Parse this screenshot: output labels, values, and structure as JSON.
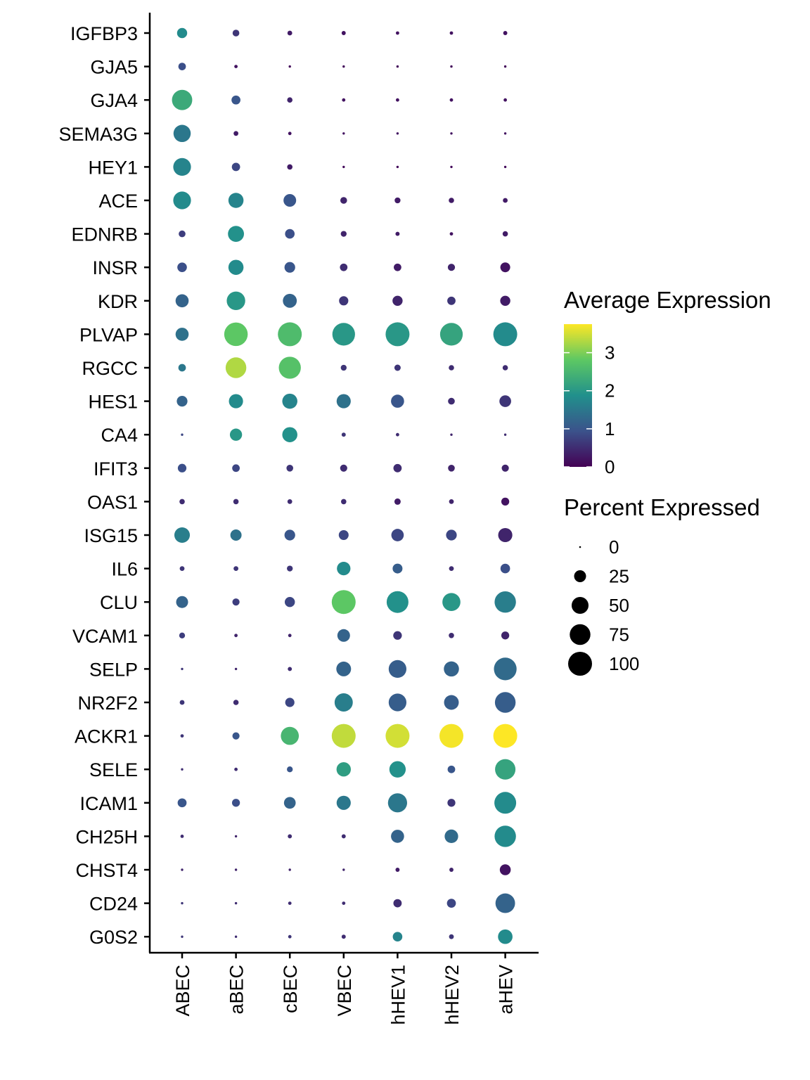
{
  "chart_data": {
    "type": "dotplot",
    "cell_types": [
      "ABEC",
      "aBEC",
      "cBEC",
      "VBEC",
      "hHEV1",
      "hHEV2",
      "aHEV"
    ],
    "genes": [
      "IGFBP3",
      "GJA5",
      "GJA4",
      "SEMA3G",
      "HEY1",
      "ACE",
      "EDNRB",
      "INSR",
      "KDR",
      "PLVAP",
      "RGCC",
      "HES1",
      "CA4",
      "IFIT3",
      "OAS1",
      "ISG15",
      "IL6",
      "CLU",
      "VCAM1",
      "SELP",
      "NR2F2",
      "ACKR1",
      "SELE",
      "ICAM1",
      "CH25H",
      "CHST4",
      "CD24",
      "G0S2"
    ],
    "avg_expression": [
      [
        1.8,
        0.6,
        0.3,
        0.2,
        0.2,
        0.2,
        0.2
      ],
      [
        0.9,
        0.2,
        0.1,
        0.1,
        0.1,
        0.1,
        0.1
      ],
      [
        2.3,
        1.0,
        0.4,
        0.2,
        0.2,
        0.2,
        0.2
      ],
      [
        1.5,
        0.3,
        0.2,
        0.2,
        0.2,
        0.2,
        0.2
      ],
      [
        1.7,
        0.8,
        0.3,
        0.1,
        0.1,
        0.1,
        0.1
      ],
      [
        1.8,
        1.7,
        1.0,
        0.4,
        0.3,
        0.3,
        0.3
      ],
      [
        0.7,
        1.9,
        0.9,
        0.4,
        0.3,
        0.2,
        0.3
      ],
      [
        0.9,
        1.8,
        1.0,
        0.5,
        0.3,
        0.4,
        0.2
      ],
      [
        1.2,
        2.0,
        1.2,
        0.6,
        0.4,
        0.6,
        0.3
      ],
      [
        1.4,
        2.8,
        2.6,
        2.0,
        2.0,
        2.2,
        1.8
      ],
      [
        1.5,
        3.3,
        2.7,
        0.6,
        0.6,
        0.5,
        0.5
      ],
      [
        1.2,
        1.8,
        1.7,
        1.4,
        1.0,
        0.5,
        0.6
      ],
      [
        0.8,
        2.0,
        1.9,
        0.6,
        0.5,
        0.4,
        0.5
      ],
      [
        0.9,
        0.8,
        0.6,
        0.5,
        0.5,
        0.4,
        0.4
      ],
      [
        0.5,
        0.5,
        0.5,
        0.5,
        0.3,
        0.4,
        0.2
      ],
      [
        1.6,
        1.4,
        1.0,
        0.8,
        0.8,
        0.8,
        0.4
      ],
      [
        0.6,
        0.6,
        0.6,
        1.8,
        1.1,
        0.5,
        0.9
      ],
      [
        1.2,
        0.7,
        0.8,
        2.8,
        1.9,
        2.0,
        1.6
      ],
      [
        0.7,
        0.4,
        0.4,
        1.2,
        0.6,
        0.5,
        0.4
      ],
      [
        0.6,
        0.4,
        0.5,
        1.2,
        1.1,
        1.2,
        1.3
      ],
      [
        0.6,
        0.5,
        0.8,
        1.6,
        1.1,
        1.1,
        1.1
      ],
      [
        0.6,
        1.0,
        2.5,
        3.4,
        3.5,
        3.7,
        3.8
      ],
      [
        0.5,
        0.5,
        1.0,
        2.1,
        1.9,
        1.0,
        2.2
      ],
      [
        1.0,
        0.9,
        1.2,
        1.5,
        1.5,
        0.6,
        1.8
      ],
      [
        0.5,
        0.4,
        0.5,
        0.5,
        1.2,
        1.3,
        1.8
      ],
      [
        0.4,
        0.4,
        0.4,
        0.4,
        0.3,
        0.4,
        0.2
      ],
      [
        0.6,
        0.5,
        0.5,
        0.5,
        0.5,
        0.8,
        1.2
      ],
      [
        0.6,
        0.5,
        0.6,
        0.5,
        1.7,
        0.6,
        1.8
      ]
    ],
    "pct_expressed": [
      [
        18,
        8,
        4,
        3,
        2,
        2,
        3
      ],
      [
        10,
        2,
        1,
        1,
        1,
        1,
        1
      ],
      [
        72,
        14,
        5,
        2,
        2,
        2,
        2
      ],
      [
        52,
        4,
        2,
        1,
        1,
        1,
        1
      ],
      [
        55,
        12,
        5,
        1,
        1,
        1,
        1
      ],
      [
        55,
        40,
        28,
        8,
        6,
        5,
        4
      ],
      [
        8,
        45,
        16,
        6,
        3,
        2,
        5
      ],
      [
        16,
        40,
        20,
        10,
        10,
        9,
        17
      ],
      [
        30,
        60,
        34,
        15,
        18,
        12,
        18
      ],
      [
        30,
        97,
        100,
        90,
        100,
        90,
        100
      ],
      [
        10,
        75,
        85,
        6,
        7,
        5,
        5
      ],
      [
        20,
        35,
        40,
        35,
        30,
        8,
        24
      ],
      [
        1,
        26,
        40,
        3,
        2,
        1,
        1
      ],
      [
        13,
        10,
        8,
        9,
        12,
        8,
        9
      ],
      [
        5,
        5,
        4,
        5,
        7,
        4,
        11
      ],
      [
        42,
        22,
        20,
        17,
        27,
        20,
        35
      ],
      [
        4,
        4,
        6,
        32,
        17,
        4,
        16
      ],
      [
        25,
        9,
        18,
        100,
        83,
        57,
        80
      ],
      [
        6,
        2,
        2,
        28,
        13,
        5,
        11
      ],
      [
        1,
        1,
        3,
        38,
        55,
        40,
        90
      ],
      [
        4,
        5,
        15,
        58,
        55,
        38,
        75
      ],
      [
        2,
        9,
        57,
        100,
        100,
        100,
        100
      ],
      [
        1,
        2,
        6,
        36,
        47,
        10,
        73
      ],
      [
        14,
        11,
        24,
        35,
        64,
        11,
        83
      ],
      [
        2,
        1,
        3,
        3,
        30,
        32,
        80
      ],
      [
        1,
        1,
        1,
        1,
        3,
        3,
        21
      ],
      [
        1,
        1,
        2,
        2,
        12,
        14,
        67
      ],
      [
        1,
        1,
        2,
        3,
        16,
        4,
        37
      ]
    ],
    "color_scale": {
      "title": "Average Expression",
      "ticks": [
        0,
        1,
        2,
        3
      ],
      "domain": [
        0,
        3.75
      ],
      "colors": [
        "#440154",
        "#3b528b",
        "#21908c",
        "#5dc863",
        "#fde725"
      ]
    },
    "size_scale": {
      "title": "Percent Expressed",
      "ticks": [
        0,
        25,
        50,
        75,
        100
      ],
      "domain": [
        0,
        100
      ]
    },
    "legend_position": "right"
  }
}
